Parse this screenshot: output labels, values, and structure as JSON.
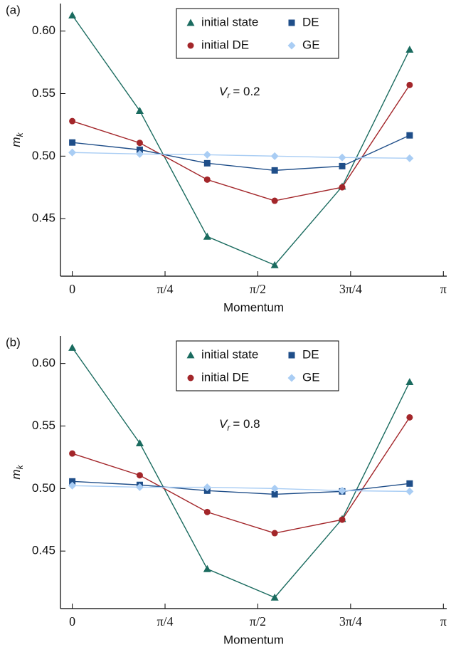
{
  "chart_data": [
    {
      "type": "line",
      "panel_label": "(a)",
      "xlabel": "Momentum",
      "ylabel": {
        "symbol": "m",
        "subscript": "k"
      },
      "annotation": {
        "symbol": "V",
        "subscript": "r",
        "text": "= 0.2"
      },
      "x": [
        0,
        0.5712,
        1.1424,
        1.7136,
        2.2848,
        2.856
      ],
      "xlim": [
        -0.1,
        3.17
      ],
      "xticks": [
        0,
        {
          "value": 0.7854,
          "label": "π/4"
        },
        {
          "value": 1.5708,
          "label": "π/2"
        },
        {
          "value": 2.3562,
          "label": "3π/4"
        },
        {
          "value": 3.1416,
          "label": "π"
        }
      ],
      "ylim": [
        0.404,
        0.622
      ],
      "yticks": [
        {
          "value": 0.45,
          "label": "0.45"
        },
        {
          "value": 0.5,
          "label": "0.50"
        },
        {
          "value": 0.55,
          "label": "0.55"
        },
        {
          "value": 0.6,
          "label": "0.60"
        }
      ],
      "legend": "top",
      "series": [
        {
          "name": "initial state",
          "color": "#1a6b5f",
          "marker": "triangle",
          "values": [
            0.6126,
            0.5363,
            0.4357,
            0.4129,
            0.4757,
            0.5852
          ]
        },
        {
          "name": "initial DE",
          "color": "#a3262a",
          "marker": "circle",
          "values": [
            0.528,
            0.5106,
            0.4812,
            0.4643,
            0.4751,
            0.5569
          ]
        },
        {
          "name": "DE",
          "color": "#1f4e89",
          "marker": "square",
          "values": [
            0.5109,
            0.5051,
            0.4943,
            0.4886,
            0.492,
            0.5166
          ]
        },
        {
          "name": "GE",
          "color": "#a9cdf4",
          "marker": "diamond",
          "values": [
            0.5029,
            0.5017,
            0.5011,
            0.5,
            0.4989,
            0.4983
          ]
        }
      ]
    },
    {
      "type": "line",
      "panel_label": "(b)",
      "xlabel": "Momentum",
      "ylabel": {
        "symbol": "m",
        "subscript": "k"
      },
      "annotation": {
        "symbol": "V",
        "subscript": "r",
        "text": "= 0.8"
      },
      "x": [
        0,
        0.5712,
        1.1424,
        1.7136,
        2.2848,
        2.856
      ],
      "xlim": [
        -0.1,
        3.17
      ],
      "xticks": [
        0,
        {
          "value": 0.7854,
          "label": "π/4"
        },
        {
          "value": 1.5708,
          "label": "π/2"
        },
        {
          "value": 2.3562,
          "label": "3π/4"
        },
        {
          "value": 3.1416,
          "label": "π"
        }
      ],
      "ylim": [
        0.404,
        0.622
      ],
      "yticks": [
        {
          "value": 0.45,
          "label": "0.45"
        },
        {
          "value": 0.5,
          "label": "0.50"
        },
        {
          "value": 0.55,
          "label": "0.55"
        },
        {
          "value": 0.6,
          "label": "0.60"
        }
      ],
      "legend": "top",
      "series": [
        {
          "name": "initial state",
          "color": "#1a6b5f",
          "marker": "triangle",
          "values": [
            0.6126,
            0.5363,
            0.4357,
            0.4129,
            0.4757,
            0.5852
          ]
        },
        {
          "name": "initial DE",
          "color": "#a3262a",
          "marker": "circle",
          "values": [
            0.528,
            0.5106,
            0.4812,
            0.4643,
            0.4751,
            0.5569
          ]
        },
        {
          "name": "DE",
          "color": "#1f4e89",
          "marker": "square",
          "values": [
            0.5057,
            0.5029,
            0.4983,
            0.4954,
            0.4977,
            0.504
          ]
        },
        {
          "name": "GE",
          "color": "#a9cdf4",
          "marker": "diamond",
          "values": [
            0.5023,
            0.5011,
            0.501,
            0.5,
            0.4983,
            0.4977
          ]
        }
      ]
    }
  ]
}
